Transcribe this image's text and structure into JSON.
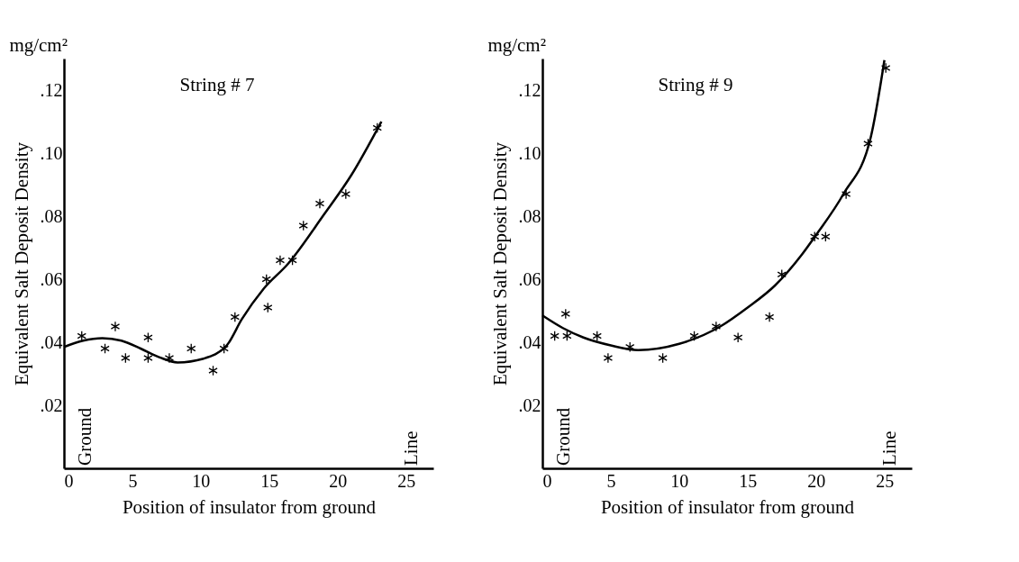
{
  "chart_data": [
    {
      "type": "scatter",
      "title": "String # 7",
      "xlabel": "Position of insulator from ground",
      "ylabel": "Equivalent Salt Deposit Density",
      "annotations": [
        "mg/cm²",
        "Ground",
        "Line"
      ],
      "xlim": [
        0,
        27
      ],
      "ylim": [
        0,
        0.13
      ],
      "xticks": [
        0,
        5,
        10,
        15,
        20,
        25
      ],
      "yticks": [
        {
          "value": 0.02,
          "label": ".02"
        },
        {
          "value": 0.04,
          "label": ".04"
        },
        {
          "value": 0.06,
          "label": ".06"
        },
        {
          "value": 0.08,
          "label": ".08"
        },
        {
          "value": 0.1,
          "label": ".10"
        },
        {
          "value": 0.12,
          "label": ".12"
        }
      ],
      "grid": false,
      "series": [
        {
          "type": "line",
          "color": "#000000",
          "line_style": "solid",
          "marker": "none",
          "x": [
            0,
            1.4,
            2.8,
            4.2,
            5.6,
            7.0,
            8.3,
            10.2,
            11.9,
            13.0,
            14.6,
            16.4,
            19.0,
            21.0,
            23.2
          ],
          "values": [
            0.0385,
            0.0405,
            0.0413,
            0.0405,
            0.038,
            0.0352,
            0.0336,
            0.0348,
            0.039,
            0.0473,
            0.057,
            0.065,
            0.0805,
            0.093,
            0.11
          ]
        },
        {
          "color": "#000000",
          "marker": "cross",
          "x": [
            1.3,
            3.0,
            3.75,
            4.5,
            6.15,
            6.15,
            7.7,
            9.3,
            10.9,
            11.7,
            12.5,
            14.8,
            14.9,
            15.8,
            16.7,
            17.5,
            18.7,
            20.6,
            22.9
          ],
          "values": [
            0.042,
            0.038,
            0.045,
            0.035,
            0.0415,
            0.035,
            0.035,
            0.038,
            0.031,
            0.038,
            0.048,
            0.06,
            0.051,
            0.066,
            0.066,
            0.077,
            0.084,
            0.087,
            0.108
          ]
        }
      ]
    },
    {
      "type": "scatter",
      "title": "String # 9",
      "xlabel": "Position of insulator from ground",
      "ylabel": "Equivalent Salt Deposit Density",
      "annotations": [
        "mg/cm²",
        "Ground",
        "Line"
      ],
      "xlim": [
        0,
        27
      ],
      "ylim": [
        0,
        0.13
      ],
      "xticks": [
        0,
        5,
        10,
        15,
        20,
        25
      ],
      "yticks": [
        {
          "value": 0.02,
          "label": ".02"
        },
        {
          "value": 0.04,
          "label": ".04"
        },
        {
          "value": 0.06,
          "label": ".06"
        },
        {
          "value": 0.08,
          "label": ".08"
        },
        {
          "value": 0.1,
          "label": ".10"
        },
        {
          "value": 0.12,
          "label": ".12"
        }
      ],
      "grid": false,
      "series": [
        {
          "type": "line",
          "color": "#000000",
          "line_style": "solid",
          "marker": "none",
          "x": [
            0,
            1.5,
            3,
            5,
            7,
            10,
            13,
            15,
            17,
            19,
            20,
            22,
            24,
            25
          ],
          "values": [
            0.0485,
            0.0445,
            0.0415,
            0.039,
            0.0375,
            0.0395,
            0.045,
            0.051,
            0.058,
            0.068,
            0.074,
            0.087,
            0.105,
            0.1295
          ]
        },
        {
          "color": "#000000",
          "marker": "cross",
          "x": [
            0.9,
            1.8,
            1.7,
            4.0,
            4.8,
            6.4,
            8.8,
            11.1,
            12.7,
            14.3,
            16.6,
            17.5,
            19.9,
            20.7,
            22.2,
            23.8,
            25.1
          ],
          "values": [
            0.042,
            0.042,
            0.049,
            0.042,
            0.035,
            0.0385,
            0.035,
            0.042,
            0.045,
            0.0415,
            0.048,
            0.0615,
            0.0735,
            0.0735,
            0.087,
            0.103,
            0.127
          ]
        }
      ]
    }
  ]
}
